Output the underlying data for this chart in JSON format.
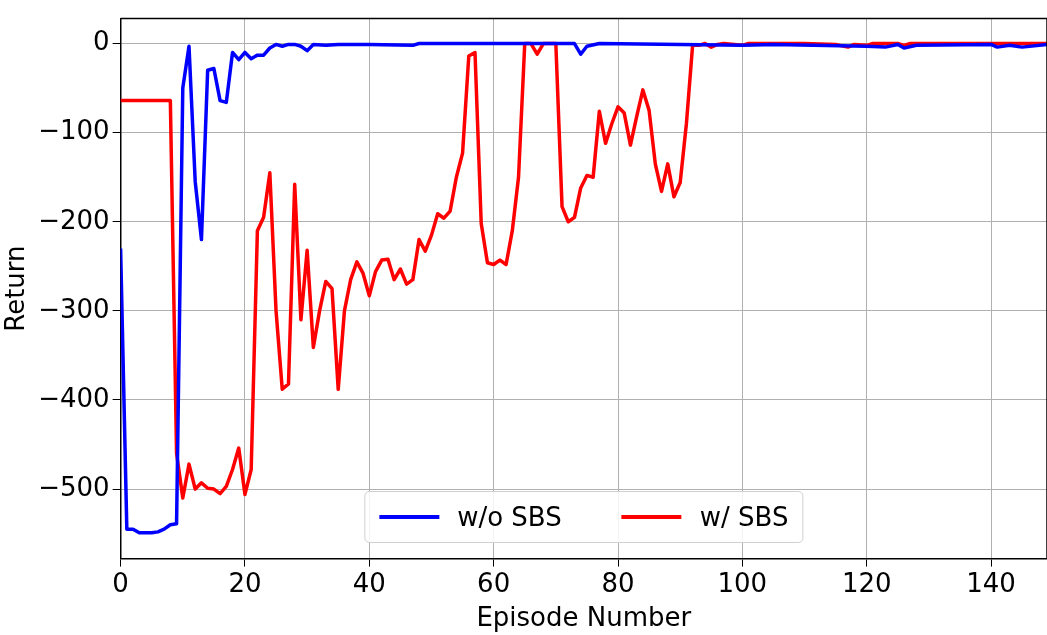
{
  "chart_data": {
    "type": "line",
    "xlabel": "Episode Number",
    "ylabel": "Return",
    "xlim": [
      0,
      149
    ],
    "ylim": [
      -578,
      28
    ],
    "xticks": [
      0,
      20,
      40,
      60,
      80,
      100,
      120,
      140
    ],
    "yticks": [
      {
        "value": -500,
        "label": "−500"
      },
      {
        "value": -400,
        "label": "−400"
      },
      {
        "value": -300,
        "label": "−300"
      },
      {
        "value": -200,
        "label": "−200"
      },
      {
        "value": -100,
        "label": "−100"
      },
      0
    ],
    "grid": true,
    "legend": "bottom",
    "marker": "none",
    "line_style": "solid",
    "series": [
      {
        "name": "w/o SBS",
        "color": "#0000ff",
        "x": [
          0,
          1,
          2,
          3,
          4,
          5,
          6,
          7,
          8,
          9,
          10,
          11,
          12,
          13,
          14,
          15,
          16,
          17,
          18,
          19,
          20,
          21,
          22,
          23,
          24,
          25,
          26,
          27,
          28,
          29,
          30,
          31,
          33,
          35,
          40,
          47,
          48,
          73,
          74,
          75,
          77,
          100,
          105,
          120,
          123,
          125,
          126,
          128,
          140,
          141,
          143,
          145,
          149
        ],
        "values": [
          -230,
          -545,
          -545,
          -549,
          -549,
          -549,
          -548,
          -545,
          -540,
          -539,
          -50,
          -3,
          -155,
          -220,
          -30,
          -28,
          -64,
          -66,
          -10,
          -18,
          -10,
          -17,
          -13,
          -13,
          -5,
          -1,
          -3,
          -1,
          -1,
          -3,
          -8,
          -1,
          -2,
          -1,
          -1,
          -2,
          0,
          0,
          -12,
          -3,
          0,
          -2,
          -1,
          -3,
          -4,
          -1,
          -5,
          -2,
          -1,
          -4,
          -2,
          -4,
          -1
        ]
      },
      {
        "name": "w/ SBS",
        "color": "#ff0000",
        "x": [
          0,
          8,
          9,
          10,
          11,
          12,
          13,
          14,
          15,
          16,
          17,
          18,
          19,
          20,
          21,
          22,
          23,
          24,
          25,
          26,
          27,
          28,
          29,
          30,
          31,
          32,
          33,
          34,
          35,
          36,
          37,
          38,
          39,
          40,
          41,
          42,
          43,
          44,
          45,
          46,
          47,
          48,
          49,
          50,
          51,
          52,
          53,
          54,
          55,
          56,
          57,
          58,
          59,
          60,
          61,
          62,
          63,
          64,
          65,
          66,
          67,
          68,
          70,
          71,
          72,
          73,
          74,
          75,
          76,
          77,
          78,
          79,
          80,
          81,
          82,
          83,
          84,
          85,
          86,
          87,
          88,
          89,
          90,
          91,
          92,
          93,
          94,
          95,
          96,
          97,
          100,
          101,
          110,
          115,
          117,
          118,
          120,
          121,
          125,
          126,
          127,
          149
        ],
        "values": [
          -64,
          -64,
          -460,
          -510,
          -472,
          -500,
          -493,
          -499,
          -500,
          -505,
          -497,
          -478,
          -454,
          -506,
          -478,
          -210,
          -195,
          -145,
          -300,
          -388,
          -382,
          -158,
          -310,
          -232,
          -341,
          -300,
          -267,
          -275,
          -388,
          -300,
          -265,
          -245,
          -258,
          -283,
          -256,
          -243,
          -242,
          -265,
          -253,
          -270,
          -265,
          -220,
          -233,
          -215,
          -191,
          -196,
          -188,
          -150,
          -123,
          -14,
          -10,
          -202,
          -246,
          -248,
          -243,
          -248,
          -210,
          -150,
          0,
          0,
          -12,
          0,
          0,
          -183,
          -200,
          -195,
          -162,
          -148,
          -150,
          -76,
          -112,
          -90,
          -71,
          -78,
          -114,
          -82,
          -52,
          -75,
          -135,
          -166,
          -135,
          -172,
          -156,
          -90,
          -2,
          -2,
          0,
          -4,
          -1,
          0,
          -2,
          0,
          0,
          -1,
          -4,
          -1,
          -2,
          0,
          0,
          -2,
          0,
          0
        ]
      }
    ]
  }
}
